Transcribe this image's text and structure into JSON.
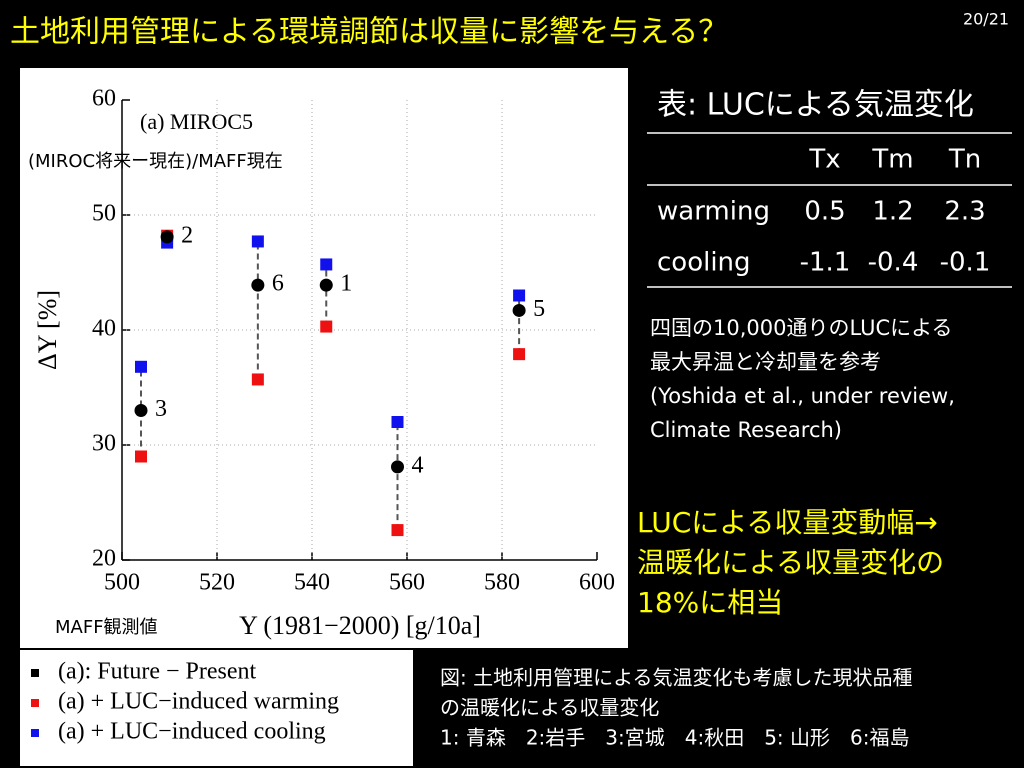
{
  "title": "土地利用管理による環境調節は収量に影響を与える？",
  "page_number": "20/21",
  "chart_data": {
    "type": "scatter",
    "panel_label": "(a) MIROC5",
    "overlay_label": "(MIROC将来ー現在)/MAFF現在",
    "x_note": "MAFF観測値",
    "x_label": "Y (1981−2000) [g/10a]",
    "y_label": "ΔY [%]",
    "point_labels": [
      "1",
      "2",
      "3",
      "4",
      "5",
      "6"
    ],
    "x": [
      543,
      509.5,
      504,
      558,
      583.6,
      528.6
    ],
    "series": [
      {
        "name": "(a): Future − Present",
        "color": "#000000",
        "values": [
          43.9,
          48.1,
          33.0,
          28.1,
          41.7,
          43.9
        ]
      },
      {
        "name": "(a) + LUC−induced warming",
        "color": "#ee1111",
        "values": [
          40.3,
          48.2,
          29.0,
          22.6,
          37.9,
          35.7
        ]
      },
      {
        "name": "(a) + LUC−induced cooling",
        "color": "#1111ee",
        "values": [
          45.7,
          47.6,
          36.8,
          32.0,
          43.0,
          47.7
        ]
      }
    ],
    "xlim": [
      500,
      600
    ],
    "xticks": [
      500,
      520,
      540,
      560,
      580,
      600
    ],
    "ylim": [
      20,
      60
    ],
    "yticks": [
      20,
      30,
      40,
      50,
      60
    ],
    "grid": true
  },
  "table": {
    "title": "表: LUCによる気温変化",
    "header": [
      "Tx",
      "Tm",
      "Tn"
    ],
    "rows": [
      [
        "warming",
        "0.5",
        "1.2",
        "2.3"
      ],
      [
        "cooling",
        "-1.1",
        "-0.4",
        "-0.1"
      ]
    ]
  },
  "note": [
    "四国の10,000通りのLUCによる",
    "最大昇温と冷却量を参考",
    "(Yoshida et al., under review,",
    "Climate Research)"
  ],
  "highlight": [
    "LUCによる収量変動幅→",
    "温暖化による収量変化の",
    "18%に相当"
  ],
  "caption": [
    "図: 土地利用管理による気温変化も考慮した現状品種",
    "の温暖化による収量変化",
    "1: 青森　2:岩手　3:宮城　4:秋田　5: 山形　6:福島"
  ]
}
